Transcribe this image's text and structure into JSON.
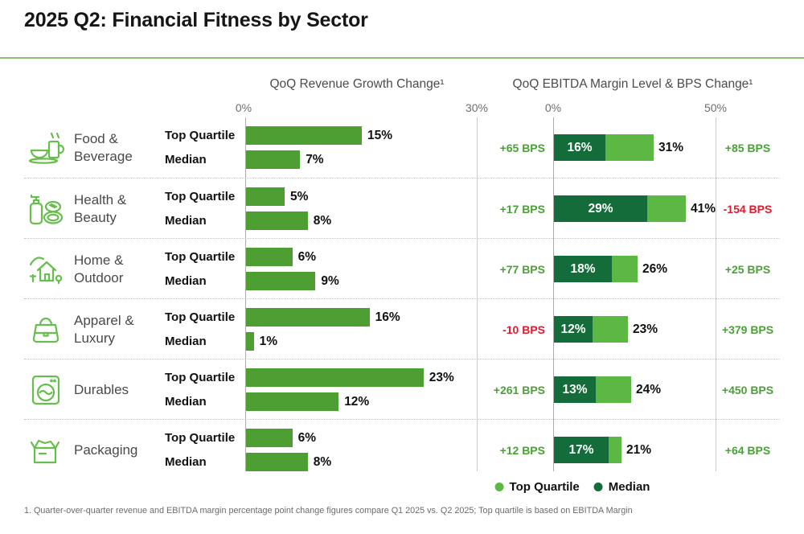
{
  "title": "2025 Q2: Financial Fitness by Sector",
  "panels": {
    "revenue": {
      "title": "QoQ Revenue Growth Change¹",
      "axis_min": "0%",
      "axis_max": "30%"
    },
    "ebitda": {
      "title": "QoQ EBITDA Margin Level & BPS Change¹",
      "axis_min": "0%",
      "axis_max": "50%"
    }
  },
  "labels": {
    "top_quartile": "Top Quartile",
    "median": "Median"
  },
  "legend": [
    {
      "label": "Top Quartile",
      "color": "#5cb843"
    },
    {
      "label": "Median",
      "color": "#146c3a"
    }
  ],
  "colors": {
    "revenue_bar_green": "#4d9e33",
    "top_quartile_light_green": "#5cb843",
    "median_dark_green": "#146c3a",
    "bps_positive_green": "#4c9f38",
    "bps_negative_red": "#e01a2e",
    "icon_green": "#66be4c",
    "rule_green": "#8cc07a"
  },
  "sectors": [
    {
      "name": "Food & Beverage",
      "revenue_top_quartile": 15,
      "revenue_median": 7,
      "revenue_top_quartile_label": "15%",
      "revenue_median_label": "7%",
      "ebitda_median": 16,
      "ebitda_top_quartile": 31,
      "ebitda_median_label": "16%",
      "ebitda_top_quartile_label": "31%",
      "bps_left": "+65 BPS",
      "bps_left_color": "green",
      "bps_right": "+85 BPS",
      "bps_right_color": "green"
    },
    {
      "name": "Health & Beauty",
      "revenue_top_quartile": 5,
      "revenue_median": 8,
      "revenue_top_quartile_label": "5%",
      "revenue_median_label": "8%",
      "ebitda_median": 29,
      "ebitda_top_quartile": 41,
      "ebitda_median_label": "29%",
      "ebitda_top_quartile_label": "41%",
      "bps_left": "+17 BPS",
      "bps_left_color": "green",
      "bps_right": "-154 BPS",
      "bps_right_color": "red"
    },
    {
      "name": "Home & Outdoor",
      "revenue_top_quartile": 6,
      "revenue_median": 9,
      "revenue_top_quartile_label": "6%",
      "revenue_median_label": "9%",
      "ebitda_median": 18,
      "ebitda_top_quartile": 26,
      "ebitda_median_label": "18%",
      "ebitda_top_quartile_label": "26%",
      "bps_left": "+77 BPS",
      "bps_left_color": "green",
      "bps_right": "+25 BPS",
      "bps_right_color": "green"
    },
    {
      "name": "Apparel & Luxury",
      "revenue_top_quartile": 16,
      "revenue_median": 1,
      "revenue_top_quartile_label": "16%",
      "revenue_median_label": "1%",
      "ebitda_median": 12,
      "ebitda_top_quartile": 23,
      "ebitda_median_label": "12%",
      "ebitda_top_quartile_label": "23%",
      "bps_left": "-10 BPS",
      "bps_left_color": "red",
      "bps_right": "+379 BPS",
      "bps_right_color": "green"
    },
    {
      "name": "Durables",
      "revenue_top_quartile": 23,
      "revenue_median": 12,
      "revenue_top_quartile_label": "23%",
      "revenue_median_label": "12%",
      "ebitda_median": 13,
      "ebitda_top_quartile": 24,
      "ebitda_median_label": "13%",
      "ebitda_top_quartile_label": "24%",
      "bps_left": "+261 BPS",
      "bps_left_color": "green",
      "bps_right": "+450 BPS",
      "bps_right_color": "green"
    },
    {
      "name": "Packaging",
      "revenue_top_quartile": 6,
      "revenue_median": 8,
      "revenue_top_quartile_label": "6%",
      "revenue_median_label": "8%",
      "ebitda_median": 17,
      "ebitda_top_quartile": 21,
      "ebitda_median_label": "17%",
      "ebitda_top_quartile_label": "21%",
      "bps_left": "+12 BPS",
      "bps_left_color": "green",
      "bps_right": "+64 BPS",
      "bps_right_color": "green"
    }
  ],
  "footnote": "1. Quarter-over-quarter revenue and EBITDA margin percentage point change figures compare Q1 2025 vs. Q2 2025; Top quartile is based on EBITDA Margin",
  "chart_data": [
    {
      "type": "bar",
      "orientation": "horizontal",
      "title": "QoQ Revenue Growth Change¹",
      "categories": [
        "Food & Beverage",
        "Health & Beauty",
        "Home & Outdoor",
        "Apparel & Luxury",
        "Durables",
        "Packaging"
      ],
      "series": [
        {
          "name": "Top Quartile",
          "values": [
            15,
            5,
            6,
            16,
            23,
            6
          ]
        },
        {
          "name": "Median",
          "values": [
            7,
            8,
            9,
            1,
            12,
            8
          ]
        }
      ],
      "unit": "%",
      "xlim": [
        0,
        30
      ],
      "tick_labels": [
        "0%",
        "30%"
      ],
      "grid": "vertical-lines-at-ticks"
    },
    {
      "type": "bar",
      "orientation": "horizontal",
      "title": "QoQ EBITDA Margin Level & BPS Change¹",
      "categories": [
        "Food & Beverage",
        "Health & Beauty",
        "Home & Outdoor",
        "Apparel & Luxury",
        "Durables",
        "Packaging"
      ],
      "series": [
        {
          "name": "Top Quartile",
          "values": [
            31,
            41,
            26,
            23,
            24,
            21
          ]
        },
        {
          "name": "Median",
          "values": [
            16,
            29,
            18,
            12,
            13,
            17
          ]
        }
      ],
      "left_bps_labels": [
        "+65 BPS",
        "+17 BPS",
        "+77 BPS",
        "-10 BPS",
        "+261 BPS",
        "+12 BPS"
      ],
      "right_bps_labels": [
        "+85 BPS",
        "-154 BPS",
        "+25 BPS",
        "+379 BPS",
        "+450 BPS",
        "+64 BPS"
      ],
      "unit": "%",
      "xlim": [
        0,
        50
      ],
      "tick_labels": [
        "0%",
        "50%"
      ],
      "legend_position": "bottom",
      "legend": [
        "Top Quartile",
        "Median"
      ]
    }
  ]
}
